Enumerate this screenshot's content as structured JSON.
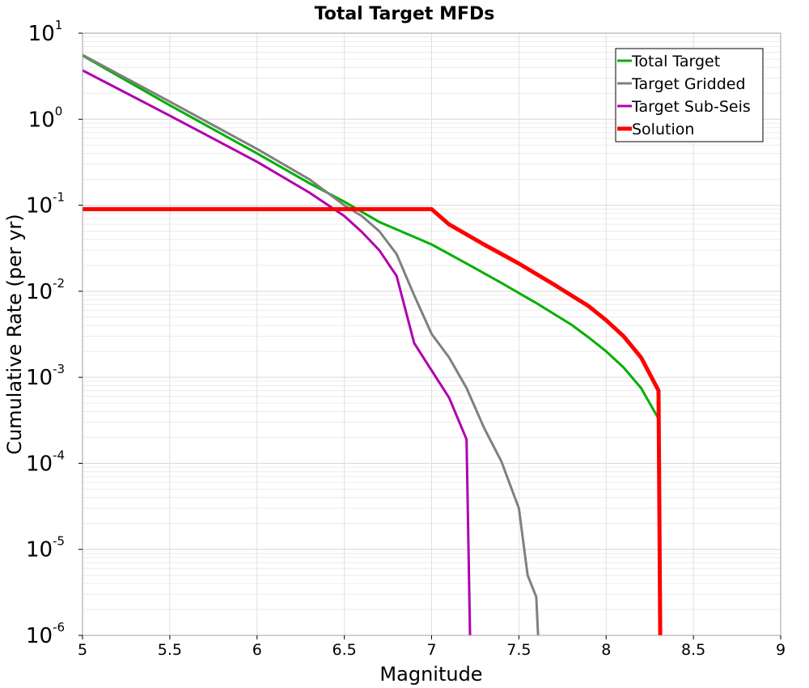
{
  "chart_data": {
    "type": "line",
    "title": "Total Target MFDs",
    "xlabel": "Magnitude",
    "ylabel": "Cumulative Rate (per yr)",
    "xlim": [
      5,
      9
    ],
    "ylim": [
      1e-06,
      10
    ],
    "yscale": "log",
    "grid": true,
    "legend_position": "top-right",
    "x_ticks": [
      "5",
      "5.5",
      "6",
      "6.5",
      "7",
      "7.5",
      "8",
      "8.5",
      "9"
    ],
    "y_ticks": [
      {
        "base": "10",
        "exp": "-6"
      },
      {
        "base": "10",
        "exp": "-5"
      },
      {
        "base": "10",
        "exp": "-4"
      },
      {
        "base": "10",
        "exp": "-3"
      },
      {
        "base": "10",
        "exp": "-2"
      },
      {
        "base": "10",
        "exp": "-1"
      },
      {
        "base": "10",
        "exp": "0"
      },
      {
        "base": "10",
        "exp": "1"
      }
    ],
    "series": [
      {
        "name": "Total Target",
        "color": "#00b000",
        "width": 3,
        "x": [
          5.0,
          5.5,
          6.0,
          6.3,
          6.5,
          6.7,
          7.0,
          7.2,
          7.4,
          7.6,
          7.8,
          7.9,
          8.0,
          8.1,
          8.2,
          8.3
        ],
        "y": [
          5.5,
          1.45,
          0.4,
          0.18,
          0.11,
          0.064,
          0.035,
          0.021,
          0.0125,
          0.0073,
          0.0041,
          0.0029,
          0.002,
          0.0013,
          0.00075,
          0.00033
        ]
      },
      {
        "name": "Target Gridded",
        "color": "#808080",
        "width": 3,
        "x": [
          5.0,
          5.5,
          6.0,
          6.3,
          6.5,
          6.6,
          6.7,
          6.8,
          6.9,
          7.0,
          7.1,
          7.2,
          7.3,
          7.4,
          7.5,
          7.55,
          7.6,
          7.61
        ],
        "y": [
          5.6,
          1.6,
          0.45,
          0.2,
          0.1,
          0.075,
          0.05,
          0.027,
          0.009,
          0.0032,
          0.0017,
          0.00075,
          0.00026,
          0.000105,
          3e-05,
          5e-06,
          2.8e-06,
          1e-06
        ]
      },
      {
        "name": "Target Sub-Seis",
        "color": "#b000b0",
        "width": 3,
        "x": [
          5.0,
          5.5,
          6.0,
          6.3,
          6.5,
          6.6,
          6.7,
          6.8,
          6.9,
          7.0,
          7.1,
          7.2,
          7.22
        ],
        "y": [
          3.7,
          1.1,
          0.32,
          0.14,
          0.075,
          0.049,
          0.03,
          0.015,
          0.0025,
          0.0012,
          0.00058,
          0.00019,
          1e-06
        ]
      },
      {
        "name": "Solution",
        "color": "#ff0000",
        "width": 5,
        "x": [
          5.0,
          7.0,
          7.1,
          7.3,
          7.5,
          7.7,
          7.9,
          8.0,
          8.1,
          8.2,
          8.3,
          8.31
        ],
        "y": [
          0.09,
          0.09,
          0.06,
          0.035,
          0.021,
          0.012,
          0.0067,
          0.0046,
          0.003,
          0.0017,
          0.0007,
          1e-06
        ]
      }
    ]
  }
}
